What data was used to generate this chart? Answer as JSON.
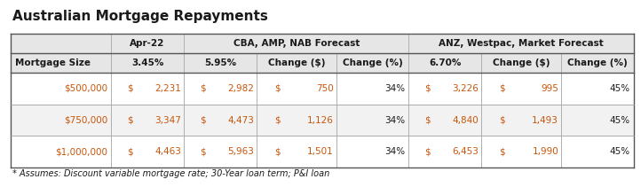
{
  "title": "Australian Mortgage Repayments",
  "footnote": "* Assumes: Discount variable mortgage rate; 30-Year loan term; P&I loan",
  "sub_headers": [
    "Mortgage Size",
    "3.45%",
    "5.95%",
    "Change ($)",
    "Change (%)",
    "6.70%",
    "Change ($)",
    "Change (%)"
  ],
  "display_data": [
    [
      "$500,000",
      "$",
      "2,231",
      "$",
      "2,982",
      "$",
      "750",
      "34%",
      "$",
      "3,226",
      "$",
      "995",
      "45%"
    ],
    [
      "$750,000",
      "$",
      "3,347",
      "$",
      "4,473",
      "$",
      "1,126",
      "34%",
      "$",
      "4,840",
      "$",
      "1,493",
      "45%"
    ],
    [
      "$1,000,000",
      "$",
      "4,463",
      "$",
      "5,963",
      "$",
      "1,501",
      "34%",
      "$",
      "6,453",
      "$",
      "1,990",
      "45%"
    ]
  ],
  "bg_header": "#e6e6e6",
  "bg_white": "#ffffff",
  "bg_light": "#f2f2f2",
  "border_dark": "#555555",
  "border_light": "#aaaaaa",
  "text_dark": "#1a1a1a",
  "text_orange": "#c8560a",
  "title_fontsize": 11,
  "header_fontsize": 7.5,
  "data_fontsize": 7.5,
  "footnote_fontsize": 7,
  "fig_width": 7.22,
  "fig_height": 2.11,
  "dpi": 100
}
